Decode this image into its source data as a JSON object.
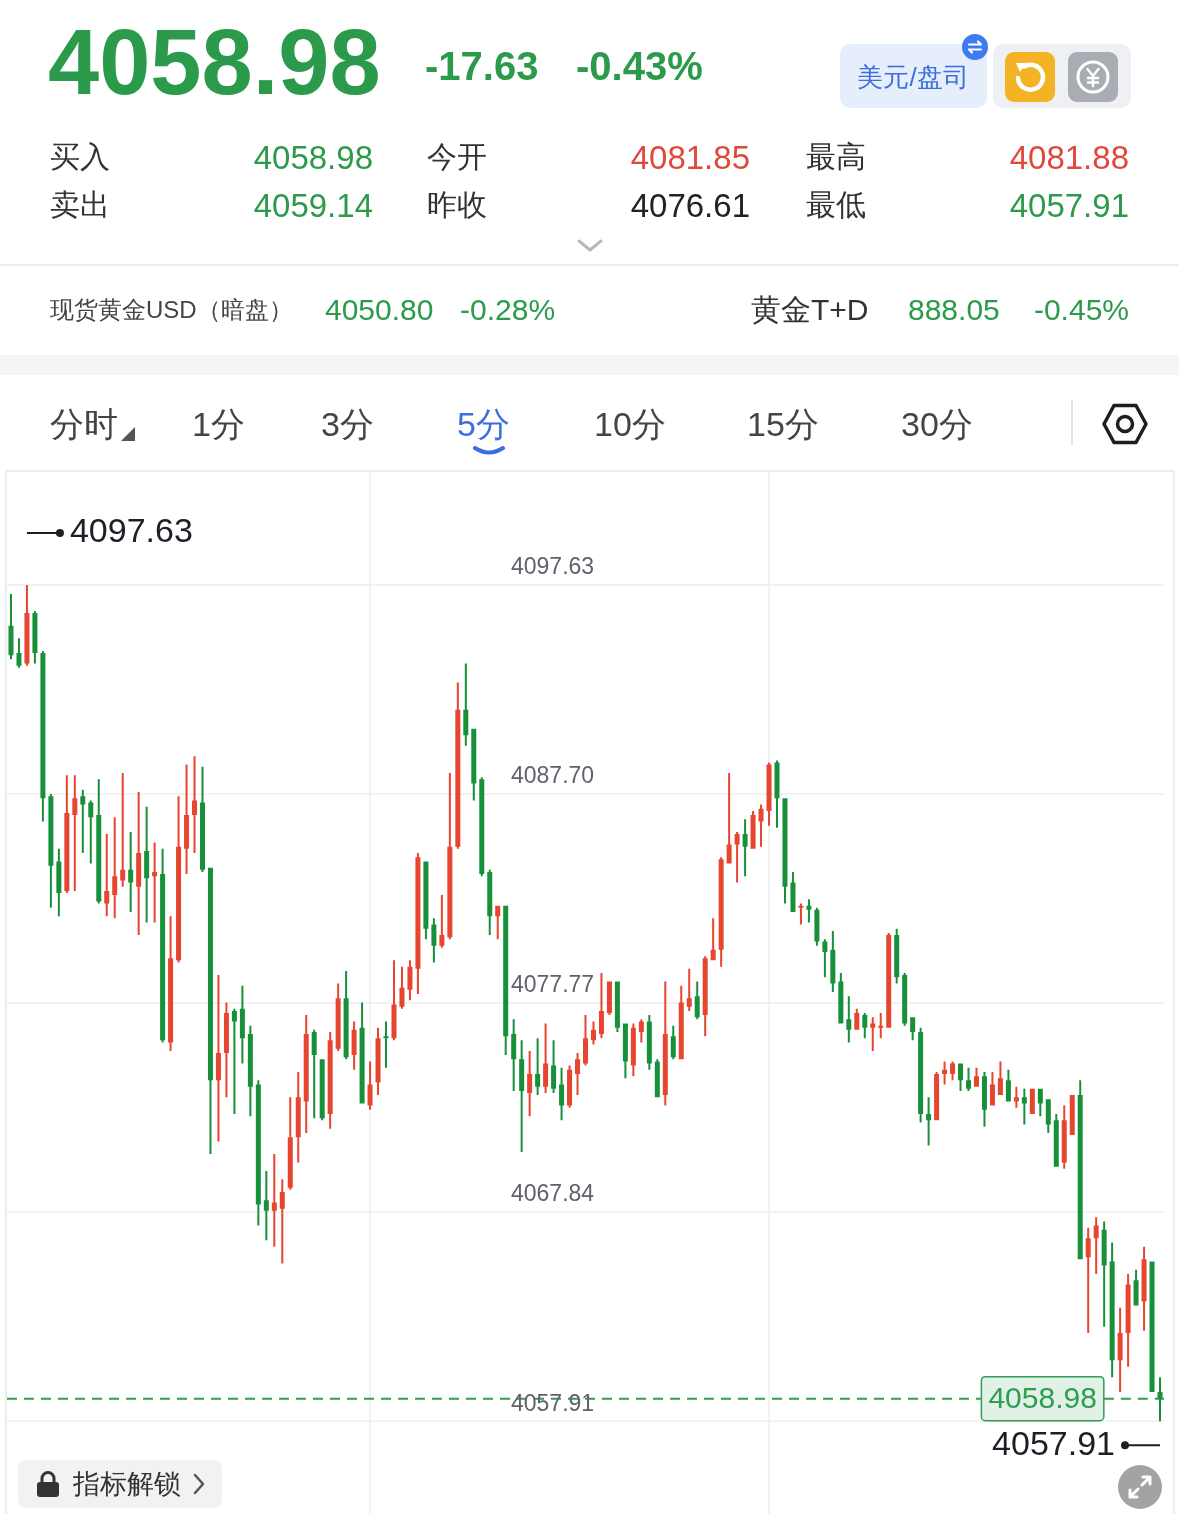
{
  "chart_data": [
    {
      "type": "other",
      "title": "4058.98",
      "annotations": [
        "-17.63",
        "-0.43%",
        "美元/盘司",
        "买入",
        "4058.98",
        "今开",
        "4081.85",
        "最高",
        "4081.88",
        "卖出",
        "4059.14",
        "昨收",
        "4076.61",
        "最低",
        "4057.91",
        "现货黄金USD（暗盘）",
        "4050.80",
        "-0.28%",
        "黄金T+D",
        "888.05",
        "-0.45%",
        "分时",
        "1分",
        "3分",
        "5分",
        "10分",
        "15分",
        "30分"
      ]
    },
    {
      "type": "candlestick",
      "categories": [
        null,
        null,
        null,
        null,
        null,
        null,
        null,
        null,
        null,
        null,
        null,
        null,
        null,
        null,
        null,
        null,
        null,
        null,
        null,
        null,
        null,
        null,
        null,
        null,
        null,
        null,
        null,
        null,
        null,
        null,
        null,
        null,
        null,
        null,
        null,
        null,
        null,
        null,
        null,
        null,
        null,
        null,
        null,
        null,
        null,
        null,
        null,
        null,
        null,
        null,
        null,
        null,
        null,
        null,
        null,
        null,
        null,
        null,
        null,
        null,
        null,
        null,
        null,
        null,
        null,
        null,
        null,
        null,
        null,
        null,
        null,
        null,
        null,
        null,
        null,
        null,
        null,
        null,
        null,
        null,
        null,
        null,
        null,
        null,
        null,
        null,
        null,
        null,
        null,
        null,
        null,
        null,
        null,
        null,
        null,
        null,
        null,
        null,
        null,
        null,
        null,
        null,
        null,
        null,
        null,
        null,
        null,
        null,
        null,
        null,
        null,
        null,
        null,
        null,
        null,
        null,
        null,
        null,
        null,
        null,
        null,
        null,
        null,
        null,
        null,
        null,
        null,
        null,
        null,
        null,
        null,
        null,
        null,
        null,
        null,
        null,
        null,
        null,
        null,
        null,
        null,
        null,
        null,
        null,
        null
      ],
      "ohlc": [
        [
          4095.7,
          4097.2,
          4094.1,
          4094.3
        ],
        [
          4094.4,
          4095.1,
          4093.7,
          4093.8
        ],
        [
          4093.9,
          4097.63,
          4093.8,
          4096.3
        ],
        [
          4096.3,
          4096.4,
          4093.9,
          4094.4
        ],
        [
          4094.4,
          4094.5,
          4086.4,
          4087.5
        ],
        [
          4087.6,
          4087.7,
          4082.3,
          4084.3
        ],
        [
          4084.5,
          4085.1,
          4081.9,
          4083.0
        ],
        [
          4083.1,
          4088.6,
          4083.0,
          4086.8
        ],
        [
          4086.7,
          4088.6,
          4083.1,
          4087.5
        ],
        [
          4087.6,
          4087.9,
          4084.9,
          4087.2
        ],
        [
          4087.3,
          4087.4,
          4084.4,
          4086.6
        ],
        [
          4086.7,
          4088.4,
          4082.5,
          4082.6
        ],
        [
          4082.5,
          4085.8,
          4081.9,
          4083.1
        ],
        [
          4082.9,
          4086.6,
          4081.8,
          4083.8
        ],
        [
          4083.6,
          4088.7,
          4083.3,
          4084.1
        ],
        [
          4084.1,
          4085.9,
          4082.1,
          4083.5
        ],
        [
          4083.3,
          4087.8,
          4081.0,
          4084.9
        ],
        [
          4085.0,
          4087.1,
          4081.6,
          4083.7
        ],
        [
          4083.8,
          4085.4,
          4081.6,
          4084.0
        ],
        [
          4083.9,
          4085.1,
          4075.9,
          4076.0
        ],
        [
          4075.9,
          4081.9,
          4075.5,
          4079.9
        ],
        [
          4079.8,
          4087.6,
          4079.7,
          4085.2
        ],
        [
          4085.1,
          4089.1,
          4083.9,
          4086.7
        ],
        [
          4086.7,
          4089.5,
          4084.9,
          4087.4
        ],
        [
          4087.3,
          4089.0,
          4084.0,
          4084.1
        ],
        [
          4084.2,
          4084.2,
          4070.6,
          4074.1
        ],
        [
          4074.1,
          4079.1,
          4071.2,
          4075.4
        ],
        [
          4075.4,
          4077.8,
          4073.3,
          4077.3
        ],
        [
          4077.4,
          4077.5,
          4072.5,
          4076.9
        ],
        [
          4077.5,
          4078.6,
          4074.9,
          4076.1
        ],
        [
          4076.3,
          4076.7,
          4072.4,
          4073.8
        ],
        [
          4073.9,
          4074.1,
          4067.2,
          4068.2
        ],
        [
          4068.4,
          4069.8,
          4066.5,
          4067.9
        ],
        [
          4067.9,
          4070.6,
          4066.2,
          4068.3
        ],
        [
          4068.0,
          4069.4,
          4065.4,
          4068.8
        ],
        [
          4069.0,
          4073.3,
          4068.9,
          4071.4
        ],
        [
          4071.4,
          4074.5,
          4070.2,
          4073.3
        ],
        [
          4073.1,
          4077.2,
          4071.6,
          4076.3
        ],
        [
          4076.4,
          4076.5,
          4072.3,
          4075.3
        ],
        [
          4075.1,
          4075.1,
          4072.2,
          4072.3
        ],
        [
          4072.5,
          4076.4,
          4071.8,
          4076.0
        ],
        [
          4075.6,
          4078.7,
          4075.5,
          4078.0
        ],
        [
          4078.0,
          4079.3,
          4075.1,
          4075.2
        ],
        [
          4075.3,
          4076.9,
          4074.6,
          4076.5
        ],
        [
          4076.6,
          4077.8,
          4073.0,
          4073.0
        ],
        [
          4072.9,
          4075.0,
          4072.7,
          4073.9
        ],
        [
          4074.0,
          4076.6,
          4073.4,
          4076.1
        ],
        [
          4076.2,
          4076.9,
          4074.7,
          4076.1
        ],
        [
          4076.1,
          4079.8,
          4076.0,
          4077.7
        ],
        [
          4077.6,
          4079.5,
          4077.5,
          4078.5
        ],
        [
          4078.4,
          4079.8,
          4077.9,
          4079.5
        ],
        [
          4079.4,
          4084.9,
          4078.2,
          4084.7
        ],
        [
          4084.5,
          4084.5,
          4080.8,
          4081.3
        ],
        [
          4081.5,
          4081.8,
          4079.7,
          4080.5
        ],
        [
          4080.5,
          4082.9,
          4080.4,
          4081.0
        ],
        [
          4080.9,
          4088.7,
          4080.8,
          4085.2
        ],
        [
          4085.2,
          4093.0,
          4085.1,
          4091.7
        ],
        [
          4091.7,
          4093.9,
          4090.0,
          4090.5
        ],
        [
          4090.8,
          4090.8,
          4087.4,
          4088.2
        ],
        [
          4088.4,
          4088.5,
          4083.8,
          4083.9
        ],
        [
          4084.0,
          4084.1,
          4081.0,
          4081.9
        ],
        [
          4081.9,
          4082.4,
          4080.8,
          4082.4
        ],
        [
          4082.4,
          4082.4,
          4075.3,
          4076.2
        ],
        [
          4076.3,
          4077.0,
          4073.6,
          4075.1
        ],
        [
          4075.1,
          4076.0,
          4070.7,
          4073.6
        ],
        [
          4073.5,
          4075.5,
          4072.4,
          4074.4
        ],
        [
          4074.4,
          4076.1,
          4073.4,
          4073.8
        ],
        [
          4073.8,
          4076.8,
          4073.5,
          4074.9
        ],
        [
          4074.8,
          4076.0,
          4073.5,
          4073.7
        ],
        [
          4073.9,
          4074.7,
          4072.2,
          4072.9
        ],
        [
          4072.9,
          4074.8,
          4072.8,
          4074.6
        ],
        [
          4074.4,
          4075.4,
          4073.4,
          4075.1
        ],
        [
          4074.9,
          4077.2,
          4074.8,
          4076.1
        ],
        [
          4076.0,
          4076.9,
          4075.8,
          4076.5
        ],
        [
          4076.3,
          4079.2,
          4076.1,
          4077.4
        ],
        [
          4077.3,
          4078.8,
          4077.2,
          4078.8
        ],
        [
          4078.8,
          4078.8,
          4076.4,
          4076.6
        ],
        [
          4076.8,
          4076.8,
          4074.2,
          4075.0
        ],
        [
          4074.8,
          4076.8,
          4074.3,
          4076.6
        ],
        [
          4076.4,
          4077.0,
          4075.9,
          4076.9
        ],
        [
          4076.9,
          4077.2,
          4074.6,
          4074.9
        ],
        [
          4075.0,
          4075.1,
          4073.3,
          4073.3
        ],
        [
          4073.4,
          4078.8,
          4072.9,
          4076.3
        ],
        [
          4076.2,
          4076.7,
          4075.1,
          4075.2
        ],
        [
          4075.1,
          4078.6,
          4075.1,
          4077.8
        ],
        [
          4077.6,
          4079.4,
          4077.4,
          4078.0
        ],
        [
          4078.1,
          4078.8,
          4077.0,
          4077.1
        ],
        [
          4077.2,
          4080.0,
          4076.2,
          4079.9
        ],
        [
          4079.8,
          4081.8,
          4079.8,
          4080.3
        ],
        [
          4080.3,
          4084.7,
          4079.5,
          4084.6
        ],
        [
          4084.4,
          4088.7,
          4084.4,
          4085.3
        ],
        [
          4085.3,
          4085.9,
          4083.5,
          4085.8
        ],
        [
          4085.8,
          4086.5,
          4083.8,
          4085.2
        ],
        [
          4085.1,
          4086.9,
          4085.1,
          4086.7
        ],
        [
          4086.4,
          4087.2,
          4085.2,
          4087.0
        ],
        [
          4086.9,
          4089.2,
          4086.2,
          4089.1
        ],
        [
          4089.2,
          4089.3,
          4086.1,
          4087.5
        ],
        [
          4087.5,
          4087.5,
          4082.5,
          4083.3
        ],
        [
          4083.5,
          4084.0,
          4082.1,
          4082.1
        ],
        [
          4082.3,
          4082.5,
          4081.5,
          4082.4
        ],
        [
          4082.4,
          4082.7,
          4081.6,
          4082.2
        ],
        [
          4082.2,
          4082.3,
          4080.5,
          4080.7
        ],
        [
          4080.7,
          4080.8,
          4079.0,
          4080.2
        ],
        [
          4080.3,
          4081.2,
          4078.3,
          4078.7
        ],
        [
          4078.8,
          4079.2,
          4076.8,
          4076.8
        ],
        [
          4077.0,
          4078.1,
          4075.9,
          4076.5
        ],
        [
          4076.5,
          4077.5,
          4076.5,
          4077.3
        ],
        [
          4077.2,
          4077.3,
          4076.1,
          4076.6
        ],
        [
          4076.6,
          4077.1,
          4075.5,
          4076.8
        ],
        [
          4076.6,
          4077.3,
          4076.1,
          4076.7
        ],
        [
          4076.6,
          4081.1,
          4076.6,
          4081.0
        ],
        [
          4081.0,
          4081.3,
          4078.7,
          4079.0
        ],
        [
          4079.1,
          4079.2,
          4076.7,
          4076.8
        ],
        [
          4077.1,
          4077.1,
          4076.0,
          4076.4
        ],
        [
          4076.4,
          4076.6,
          4072.1,
          4072.5
        ],
        [
          4072.5,
          4073.3,
          4071.0,
          4072.2
        ],
        [
          4072.2,
          4074.5,
          4072.2,
          4074.4
        ],
        [
          4074.4,
          4075.0,
          4073.9,
          4074.6
        ],
        [
          4074.4,
          4075.0,
          4074.1,
          4074.9
        ],
        [
          4074.9,
          4074.9,
          4073.6,
          4074.1
        ],
        [
          4074.1,
          4074.7,
          4073.6,
          4073.7
        ],
        [
          4073.8,
          4074.7,
          4073.8,
          4074.3
        ],
        [
          4074.3,
          4074.5,
          4071.9,
          4072.7
        ],
        [
          4072.9,
          4074.5,
          4072.9,
          4073.9
        ],
        [
          4073.4,
          4075.0,
          4073.4,
          4074.2
        ],
        [
          4074.1,
          4074.6,
          4073.1,
          4073.1
        ],
        [
          4073.1,
          4073.8,
          4072.8,
          4073.3
        ],
        [
          4073.3,
          4073.7,
          4072.0,
          4073.0
        ],
        [
          4072.5,
          4073.7,
          4072.5,
          4073.7
        ],
        [
          4073.7,
          4073.7,
          4072.4,
          4073.0
        ],
        [
          4073.2,
          4073.2,
          4071.6,
          4072.0
        ],
        [
          4072.2,
          4072.5,
          4070.0,
          4070.0
        ],
        [
          4070.2,
          4072.9,
          4069.9,
          4072.2
        ],
        [
          4071.5,
          4073.4,
          4071.5,
          4073.4
        ],
        [
          4073.4,
          4074.1,
          4065.6,
          4065.6
        ],
        [
          4065.7,
          4067.1,
          4062.1,
          4066.6
        ],
        [
          4066.6,
          4067.6,
          4064.9,
          4067.2
        ],
        [
          4067.0,
          4067.4,
          4062.4,
          4065.3
        ],
        [
          4065.5,
          4066.4,
          4060.0,
          4060.8
        ],
        [
          4060.8,
          4063.3,
          4059.3,
          4062.1
        ],
        [
          4062.1,
          4064.9,
          4060.5,
          4064.4
        ],
        [
          4064.6,
          4065.1,
          4063.4,
          4063.4
        ],
        [
          4063.6,
          4066.2,
          4062.2,
          4065.6
        ],
        [
          4065.5,
          4065.5,
          4059.3,
          4059.3
        ],
        [
          4059.3,
          4060.0,
          4057.91,
          4058.98
        ]
      ],
      "ylim": [
        4053.5,
        4103.0
      ],
      "yticks": [
        4057.91,
        4067.84,
        4077.77,
        {
          "value": 4087.7,
          "label": "4087.70"
        },
        4097.63
      ],
      "grid": "y",
      "tick_labels": "y",
      "ref_lines": [
        {
          "axis": "y",
          "value": 4058.98,
          "label": "4058.98",
          "color": "#2e9e50",
          "line_style": "dashed"
        }
      ],
      "annotations": [
        "4097.63",
        "4057.91",
        "指标解锁"
      ]
    }
  ]
}
